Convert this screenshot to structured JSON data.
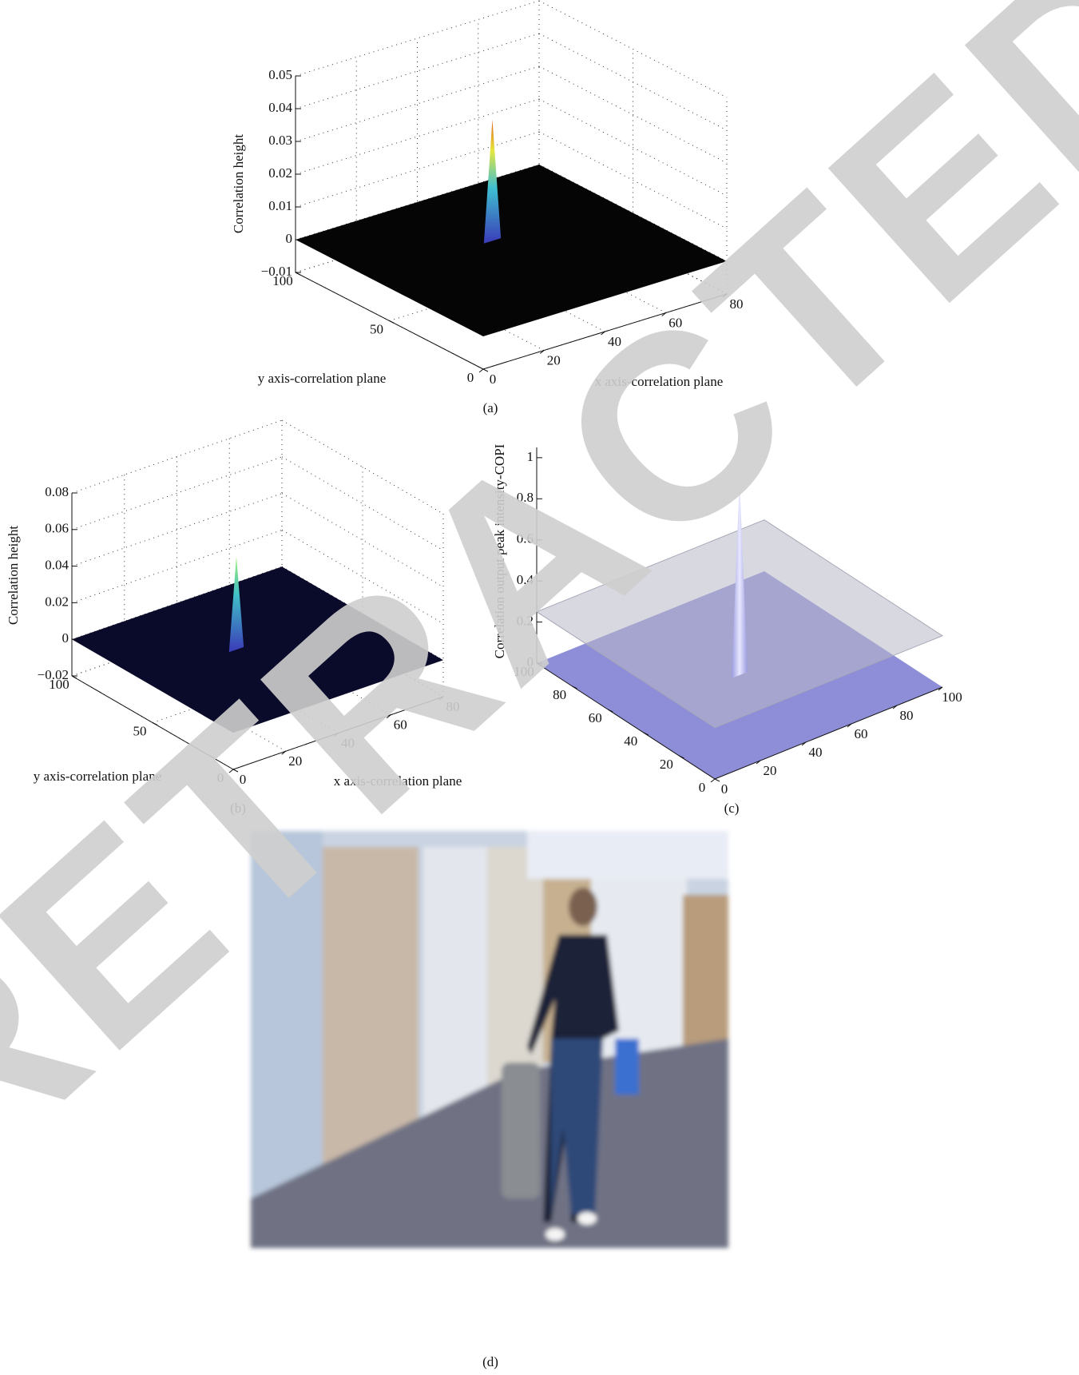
{
  "chart_data": [
    {
      "type": "surface3d",
      "caption": "(a)",
      "zlabel": "Correlation height",
      "xlabel": "x axis-correlation plane",
      "ylabel": "y axis-correlation plane",
      "xlim": [
        0,
        80
      ],
      "xticks": [
        0,
        20,
        40,
        60,
        80
      ],
      "ylim": [
        0,
        100
      ],
      "yticks": [
        0,
        50,
        100
      ],
      "zlim": [
        -0.01,
        0.05
      ],
      "zticks": [
        {
          "value": -0.01,
          "label": "−0.01"
        },
        0,
        0.01,
        0.02,
        0.03,
        0.04,
        0.05
      ],
      "values": [
        0.037
      ],
      "floor_color": "#050505",
      "grid": true
    },
    {
      "type": "surface3d",
      "caption": "(b)",
      "zlabel": "Correlation height",
      "xlabel": "x axis-correlation plane",
      "ylabel": "y axis-correlation plane",
      "xlim": [
        0,
        80
      ],
      "xticks": [
        0,
        20,
        40,
        60,
        80
      ],
      "ylim": [
        0,
        100
      ],
      "yticks": [
        0,
        50,
        100
      ],
      "zlim": [
        -0.02,
        0.08
      ],
      "zticks": [
        {
          "value": -0.02,
          "label": "−0.02"
        },
        0,
        0.02,
        0.04,
        0.06,
        0.08
      ],
      "values": [
        0.051
      ],
      "floor_color": "#0a0a2a",
      "grid": true
    },
    {
      "type": "surface3d",
      "caption": "(c)",
      "zlabel": "Correlation output peak intensity-COPI",
      "xlim": [
        0,
        100
      ],
      "xticks": [
        0,
        20,
        40,
        60,
        80,
        100
      ],
      "ylim": [
        0,
        100
      ],
      "yticks": [
        0,
        20,
        40,
        60,
        80,
        100
      ],
      "zlim": [
        0,
        1.05
      ],
      "zticks": [
        0,
        0.2,
        0.4,
        0.6,
        0.8,
        1
      ],
      "values": [
        0.95
      ],
      "plane": 0.25,
      "floor_color": "#8e8ed8",
      "grid": false
    }
  ],
  "photo": {
    "caption": "(d)"
  },
  "watermark": "RETRACTED"
}
